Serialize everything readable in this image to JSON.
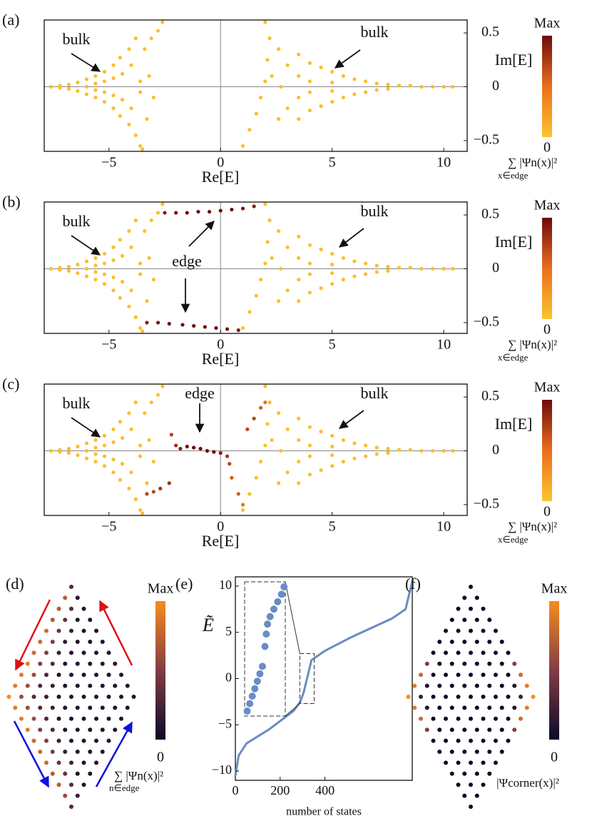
{
  "chart_data": [
    {
      "type": "scatter",
      "label": "(a)",
      "xlabel": "Re[E]",
      "ylabel": "Im[E]",
      "xlim": [
        -7.9,
        11.05
      ],
      "ylim": [
        -0.6,
        0.62
      ],
      "xticks": [
        {
          "value": -5,
          "label": "−5"
        },
        0,
        5,
        10
      ],
      "yticks": [
        {
          "value": -0.5,
          "label": "−0.5"
        },
        0,
        0.5
      ],
      "zero_lines": true,
      "bulk_color": "#fbbf2a",
      "bulk": {
        "x": [
          -7.6,
          -7.2,
          -7.2,
          -6.8,
          -6.8,
          -6.4,
          -6.4,
          -6.0,
          -6.0,
          -6.0,
          -5.6,
          -5.6,
          -5.6,
          -5.6,
          -5.2,
          -5.2,
          -5.2,
          -5.2,
          -4.8,
          -4.8,
          -4.8,
          -4.8,
          -4.5,
          -4.5,
          -4.4,
          -4.4,
          -4.1,
          -4.1,
          -4.0,
          -4.0,
          -3.8,
          -3.8,
          -3.6,
          -3.4,
          -3.3,
          -3.1,
          -3.0,
          -3.2,
          -2.8,
          -2.6,
          -3.5,
          -3.6,
          -3.6,
          1.0,
          1.3,
          1.6,
          1.8,
          2.0,
          2.1,
          2.2,
          2.0,
          2.6,
          2.6,
          3.0,
          3.0,
          3.5,
          3.5,
          3.5,
          3.5,
          4.0,
          4.0,
          4.0,
          4.0,
          4.5,
          4.5,
          5.0,
          5.0,
          5.0,
          5.0,
          5.5,
          5.5,
          6.0,
          6.0,
          6.5,
          6.5,
          7.0,
          7.0,
          7.5,
          7.5,
          8.0,
          8.5,
          9.0,
          9.5,
          10.0,
          10.4,
          2.3,
          2.7
        ],
        "y": [
          0,
          0.01,
          -0.01,
          0.02,
          -0.02,
          0.04,
          -0.04,
          0.07,
          -0.07,
          0,
          0.1,
          -0.1,
          0.03,
          -0.03,
          0.14,
          -0.14,
          0.05,
          -0.05,
          0.2,
          -0.2,
          0.08,
          -0.08,
          0.27,
          -0.27,
          0.12,
          -0.12,
          0.35,
          -0.35,
          0.2,
          -0.2,
          0.45,
          -0.45,
          -0.55,
          0.35,
          -0.3,
          0.45,
          -0.1,
          0.1,
          0.52,
          0.6,
          -0.58,
          0.05,
          -0.05,
          -0.55,
          -0.4,
          -0.25,
          -0.1,
          0.05,
          0.25,
          0.45,
          0.6,
          -0.3,
          0.35,
          0.2,
          -0.2,
          0.3,
          -0.3,
          0.1,
          -0.1,
          0.22,
          -0.22,
          0.05,
          -0.05,
          0.18,
          -0.18,
          0.14,
          -0.14,
          0.04,
          -0.04,
          0.1,
          -0.1,
          0.07,
          -0.07,
          0.05,
          -0.05,
          0.03,
          -0.03,
          0.02,
          -0.02,
          0.01,
          0.01,
          0,
          0,
          0,
          0,
          0.1,
          0
        ]
      },
      "annotations": [
        "bulk",
        "bulk"
      ],
      "colorbar": {
        "max_label": "Max",
        "min_label": "0",
        "label": "∑ |Ψn(x)|²",
        "sub": "x∈edge"
      }
    },
    {
      "type": "scatter",
      "label": "(b)",
      "xlabel": "Re[E]",
      "ylabel": "Im[E]",
      "xlim": [
        -7.9,
        11.05
      ],
      "ylim": [
        -0.6,
        0.62
      ],
      "xticks": [
        {
          "value": -5,
          "label": "−5"
        },
        0,
        5,
        10
      ],
      "yticks": [
        {
          "value": -0.5,
          "label": "−0.5"
        },
        0,
        0.5
      ],
      "zero_lines": true,
      "bulk_color": "#fbbf2a",
      "bulk": {
        "x": [
          -7.6,
          -7.2,
          -7.2,
          -6.8,
          -6.8,
          -6.4,
          -6.4,
          -6.0,
          -6.0,
          -6.0,
          -5.6,
          -5.6,
          -5.6,
          -5.6,
          -5.2,
          -5.2,
          -5.2,
          -5.2,
          -4.8,
          -4.8,
          -4.8,
          -4.8,
          -4.5,
          -4.5,
          -4.4,
          -4.4,
          -4.1,
          -4.1,
          -4.0,
          -4.0,
          -3.8,
          -3.8,
          -3.6,
          -3.4,
          -3.3,
          -3.1,
          -3.0,
          -3.2,
          -2.8,
          -2.6,
          -3.5,
          -3.6,
          -3.6,
          1.0,
          1.3,
          1.6,
          1.8,
          2.0,
          2.1,
          2.2,
          2.0,
          2.6,
          2.6,
          3.0,
          3.0,
          3.5,
          3.5,
          3.5,
          3.5,
          4.0,
          4.0,
          4.0,
          4.0,
          4.5,
          4.5,
          5.0,
          5.0,
          5.0,
          5.0,
          5.5,
          5.5,
          6.0,
          6.0,
          6.5,
          6.5,
          7.0,
          7.0,
          7.5,
          7.5,
          8.0,
          8.5,
          9.0,
          9.5,
          10.0,
          10.4,
          2.3,
          2.7
        ],
        "y": [
          0,
          0.01,
          -0.01,
          0.02,
          -0.02,
          0.04,
          -0.04,
          0.07,
          -0.07,
          0,
          0.1,
          -0.1,
          0.03,
          -0.03,
          0.14,
          -0.14,
          0.05,
          -0.05,
          0.2,
          -0.2,
          0.08,
          -0.08,
          0.27,
          -0.27,
          0.12,
          -0.12,
          0.35,
          -0.35,
          0.2,
          -0.2,
          0.45,
          -0.45,
          -0.55,
          0.35,
          -0.3,
          0.45,
          -0.1,
          0.1,
          0.52,
          0.6,
          -0.58,
          0.05,
          -0.05,
          -0.55,
          -0.4,
          -0.25,
          -0.1,
          0.05,
          0.25,
          0.45,
          0.6,
          -0.3,
          0.35,
          0.2,
          -0.2,
          0.3,
          -0.3,
          0.1,
          -0.1,
          0.22,
          -0.22,
          0.05,
          -0.05,
          0.18,
          -0.18,
          0.14,
          -0.14,
          0.04,
          -0.04,
          0.1,
          -0.1,
          0.07,
          -0.07,
          0.05,
          -0.05,
          0.03,
          -0.03,
          0.02,
          -0.02,
          0.01,
          0.01,
          0,
          0,
          0,
          0,
          0.1,
          0
        ]
      },
      "edge": {
        "x": [
          -2.5,
          -2,
          -1.5,
          -1,
          -0.5,
          0,
          0.5,
          1,
          1.5,
          -3.3,
          -2.8,
          -2.3,
          -1.7,
          -1.2,
          -0.7,
          -0.2,
          0.3,
          0.8
        ],
        "y": [
          0.52,
          0.52,
          0.52,
          0.53,
          0.53,
          0.54,
          0.55,
          0.56,
          0.58,
          -0.5,
          -0.5,
          -0.51,
          -0.52,
          -0.53,
          -0.54,
          -0.55,
          -0.56,
          -0.57
        ],
        "intensity": [
          0.9,
          0.95,
          1,
          1,
          1,
          1,
          1,
          0.95,
          0.9,
          0.9,
          0.95,
          1,
          1,
          1,
          1,
          1,
          0.95,
          0.9
        ]
      },
      "annotations": [
        "bulk",
        "edge",
        "bulk"
      ],
      "colorbar": {
        "max_label": "Max",
        "min_label": "0",
        "label": "∑ |Ψn(x)|²",
        "sub": "x∈edge"
      }
    },
    {
      "type": "scatter",
      "label": "(c)",
      "xlabel": "Re[E]",
      "ylabel": "Im[E]",
      "xlim": [
        -7.9,
        11.05
      ],
      "ylim": [
        -0.6,
        0.62
      ],
      "xticks": [
        {
          "value": -5,
          "label": "−5"
        },
        0,
        5,
        10
      ],
      "yticks": [
        {
          "value": -0.5,
          "label": "−0.5"
        },
        0,
        0.5
      ],
      "zero_lines": true,
      "bulk_color": "#fbbf2a",
      "bulk": {
        "x": [
          -7.6,
          -7.2,
          -7.2,
          -6.8,
          -6.8,
          -6.4,
          -6.4,
          -6.0,
          -6.0,
          -6.0,
          -5.6,
          -5.6,
          -5.6,
          -5.6,
          -5.2,
          -5.2,
          -5.2,
          -5.2,
          -4.8,
          -4.8,
          -4.8,
          -4.8,
          -4.5,
          -4.5,
          -4.4,
          -4.4,
          -4.1,
          -4.1,
          -4.0,
          -4.0,
          -3.8,
          -3.8,
          -3.6,
          -3.4,
          -3.3,
          -3.1,
          -3.0,
          -3.2,
          -2.8,
          -2.6,
          -3.5,
          -3.6,
          -3.6,
          1.0,
          1.3,
          1.6,
          1.8,
          2.0,
          2.1,
          2.2,
          2.0,
          2.6,
          2.6,
          3.0,
          3.0,
          3.5,
          3.5,
          3.5,
          3.5,
          4.0,
          4.0,
          4.0,
          4.0,
          4.5,
          4.5,
          5.0,
          5.0,
          5.0,
          5.0,
          5.5,
          5.5,
          6.0,
          6.0,
          6.5,
          6.5,
          7.0,
          7.0,
          7.5,
          7.5,
          8.0,
          8.5,
          9.0,
          9.5,
          10.0,
          10.4,
          2.3,
          2.7
        ],
        "y": [
          0,
          0.01,
          -0.01,
          0.02,
          -0.02,
          0.04,
          -0.04,
          0.07,
          -0.07,
          0,
          0.1,
          -0.1,
          0.03,
          -0.03,
          0.14,
          -0.14,
          0.05,
          -0.05,
          0.2,
          -0.2,
          0.08,
          -0.08,
          0.27,
          -0.27,
          0.12,
          -0.12,
          0.35,
          -0.35,
          0.2,
          -0.2,
          0.45,
          -0.45,
          -0.55,
          0.35,
          -0.3,
          0.45,
          -0.1,
          0.1,
          0.52,
          0.6,
          -0.58,
          0.05,
          -0.05,
          -0.55,
          -0.4,
          -0.25,
          -0.1,
          0.05,
          0.25,
          0.45,
          0.6,
          -0.3,
          0.35,
          0.2,
          -0.2,
          0.3,
          -0.3,
          0.1,
          -0.1,
          0.22,
          -0.22,
          0.05,
          -0.05,
          0.18,
          -0.18,
          0.14,
          -0.14,
          0.04,
          -0.04,
          0.1,
          -0.1,
          0.07,
          -0.07,
          0.05,
          -0.05,
          0.03,
          -0.03,
          0.02,
          -0.02,
          0.01,
          0.01,
          0,
          0,
          0,
          0,
          0.1,
          0
        ]
      },
      "edge": {
        "x": [
          -2.2,
          -2,
          -1.8,
          -1.5,
          -1.2,
          -0.9,
          -0.6,
          -0.3,
          0,
          0.3,
          0.4,
          0.5,
          0.8,
          1.0,
          1.2,
          1.5,
          1.8,
          2.0,
          -2.3,
          -2.7,
          -3.0,
          -3.3
        ],
        "y": [
          0.15,
          0.05,
          0.02,
          0.04,
          0.03,
          0.02,
          0,
          -0.01,
          -0.02,
          -0.05,
          -0.12,
          -0.25,
          -0.4,
          -0.5,
          0.2,
          0.3,
          0.4,
          0.45,
          -0.3,
          -0.35,
          -0.38,
          -0.4
        ],
        "intensity": [
          0.7,
          0.8,
          0.9,
          1,
          1,
          1,
          1,
          1,
          0.9,
          0.8,
          0.7,
          0.6,
          0.6,
          0.5,
          0.7,
          0.7,
          0.6,
          0.5,
          0.8,
          0.8,
          0.7,
          0.7
        ]
      },
      "annotations": [
        "bulk",
        "edge",
        "bulk"
      ],
      "colorbar": {
        "max_label": "Max",
        "min_label": "0",
        "label": "∑ |Ψn(x)|²",
        "sub": "x∈edge"
      }
    },
    {
      "type": "lattice",
      "label": "(d)",
      "rows": [
        [
          0.3
        ],
        [
          0.7,
          0.1
        ],
        [
          0.7,
          0.3,
          0.1
        ],
        [
          0.7,
          0.4,
          0.1,
          0.1
        ],
        [
          0.8,
          0.4,
          0.2,
          0.1,
          0.1
        ],
        [
          0.8,
          0.5,
          0.2,
          0.1,
          0.1,
          0.1
        ],
        [
          0.8,
          0.5,
          0.2,
          0.1,
          0.1,
          0.1,
          0.1
        ],
        [
          0.9,
          0.5,
          0.3,
          0.1,
          0.1,
          0.1,
          0.1,
          0.1
        ],
        [
          0.9,
          0.6,
          0.3,
          0.1,
          0.1,
          0.1,
          0.1,
          0.1,
          0.1
        ],
        [
          0.9,
          0.6,
          0.3,
          0.2,
          0.1,
          0.1,
          0.1,
          0.1,
          0.1,
          0.1
        ],
        [
          1,
          0.6,
          0.3,
          0.2,
          0.1,
          0.1,
          0.1,
          0.1,
          0.1,
          0.1,
          0.1
        ],
        [
          0.9,
          0.6,
          0.3,
          0.2,
          0.1,
          0.1,
          0.1,
          0.1,
          0.1,
          0.1
        ],
        [
          0.9,
          0.6,
          0.3,
          0.1,
          0.1,
          0.1,
          0.1,
          0.1,
          0.1
        ],
        [
          0.9,
          0.5,
          0.3,
          0.1,
          0.1,
          0.1,
          0.1,
          0.1
        ],
        [
          0.8,
          0.5,
          0.2,
          0.1,
          0.1,
          0.1,
          0.1
        ],
        [
          0.8,
          0.5,
          0.2,
          0.1,
          0.1,
          0.1
        ],
        [
          0.8,
          0.4,
          0.2,
          0.1,
          0.1
        ],
        [
          0.7,
          0.4,
          0.1,
          0.1
        ],
        [
          0.7,
          0.3,
          0.1
        ],
        [
          0.6,
          0.2
        ],
        [
          0.3
        ]
      ],
      "colorbar": {
        "max_label": "Max",
        "min_label": "0",
        "label": "∑ |Ψn(x)|²",
        "sub": "n∈edge"
      }
    },
    {
      "type": "line",
      "label": "(e)",
      "ylabel": "Ẽ",
      "xlabel": "number of states",
      "color": "#6a8cc4",
      "xlim": [
        0,
        790
      ],
      "ylim": [
        -11,
        11
      ],
      "xticks": [
        0,
        200,
        400
      ],
      "yticks": [
        {
          "value": -10,
          "label": "−10"
        },
        {
          "value": -5,
          "label": "−5"
        },
        0,
        5,
        10
      ],
      "x": [
        0,
        15,
        50,
        150,
        260,
        290,
        305,
        320,
        340,
        400,
        520,
        700,
        760,
        790
      ],
      "y": [
        -10.5,
        -8.3,
        -7,
        -5.5,
        -3.5,
        -2.5,
        -1.5,
        0,
        2,
        3,
        4.5,
        6.5,
        7.5,
        10.5
      ],
      "inset": {
        "xlim": [
          288,
          352
        ],
        "ylim": [
          -2.7,
          2.7
        ],
        "x": [
          292,
          296,
          300,
          304,
          308,
          312,
          316,
          320,
          322,
          324,
          328,
          334,
          340,
          346,
          350
        ],
        "y": [
          -2.5,
          -2.2,
          -1.9,
          -1.6,
          -1.3,
          -1.0,
          -0.7,
          0.1,
          0.6,
          1.0,
          1.3,
          1.6,
          1.9,
          2.2,
          2.5
        ]
      }
    },
    {
      "type": "lattice",
      "label": "(f)",
      "rows": [
        [
          0
        ],
        [
          0,
          0
        ],
        [
          0,
          0,
          0
        ],
        [
          0,
          0,
          0,
          0
        ],
        [
          0,
          0,
          0,
          0,
          0
        ],
        [
          0,
          0,
          0,
          0,
          0,
          0
        ],
        [
          0,
          0,
          0,
          0,
          0,
          0,
          0
        ],
        [
          0.5,
          0,
          0,
          0,
          0,
          0,
          0,
          0.5
        ],
        [
          0.8,
          0,
          0,
          0,
          0,
          0,
          0,
          0,
          0.8
        ],
        [
          0.9,
          0.1,
          0,
          0,
          0,
          0,
          0,
          0,
          0.1,
          0.9
        ],
        [
          1,
          0.2,
          0,
          0,
          0,
          0,
          0,
          0,
          0,
          0.2,
          1
        ],
        [
          0.9,
          0.1,
          0,
          0,
          0,
          0,
          0,
          0,
          0.1,
          0.9
        ],
        [
          0.8,
          0,
          0,
          0,
          0,
          0,
          0,
          0,
          0.8
        ],
        [
          0.5,
          0,
          0,
          0,
          0,
          0,
          0,
          0.5
        ],
        [
          0,
          0,
          0,
          0,
          0,
          0,
          0
        ],
        [
          0,
          0,
          0,
          0,
          0,
          0
        ],
        [
          0,
          0,
          0,
          0,
          0
        ],
        [
          0,
          0,
          0,
          0
        ],
        [
          0,
          0,
          0
        ],
        [
          0,
          0
        ],
        [
          0
        ]
      ],
      "colorbar": {
        "max_label": "Max",
        "min_label": "0",
        "label": "|Ψcorner(x)|²"
      }
    }
  ]
}
